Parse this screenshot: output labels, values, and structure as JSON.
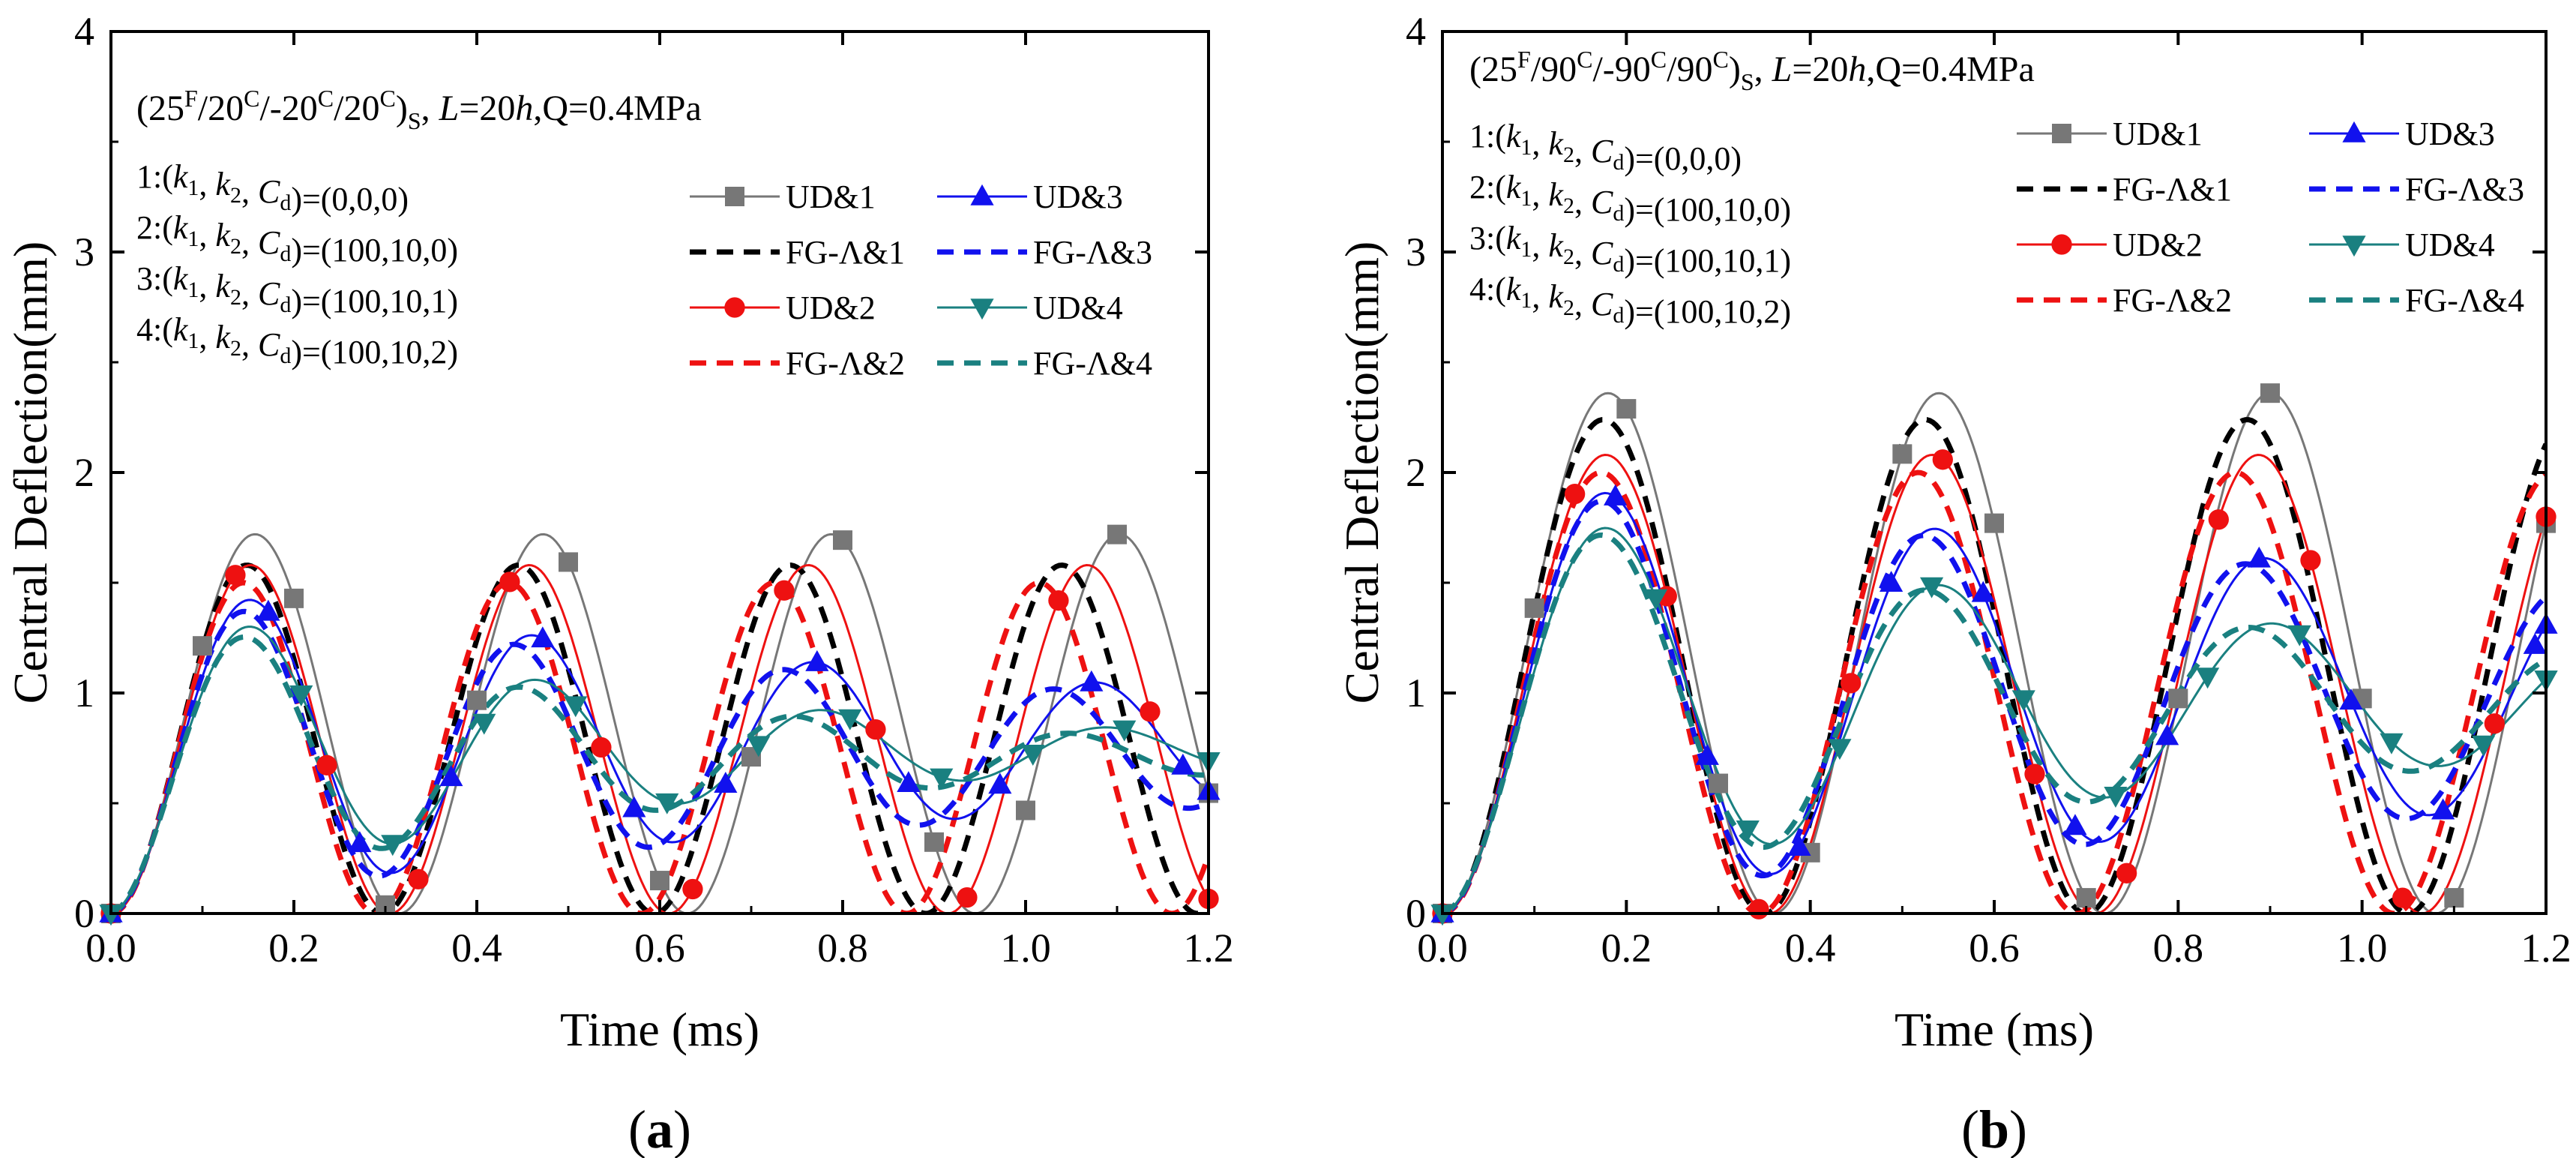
{
  "chart_data": [
    {
      "id": "a",
      "type": "line",
      "panel_label_open": "(",
      "panel_label_letter": "a",
      "panel_label_close": ")",
      "xlabel": "Time (ms)",
      "ylabel": "Central Deflection(mm)",
      "xlim": [
        0,
        1.2
      ],
      "ylim": [
        0,
        4
      ],
      "xticks": [
        "0.0",
        "0.2",
        "0.4",
        "0.6",
        "0.8",
        "1.0",
        "1.2"
      ],
      "yticks": [
        "0",
        "1",
        "2",
        "3",
        "4"
      ],
      "header": {
        "pre": "(25",
        "s1": "F",
        "m1": "/20",
        "s2": "C",
        "m2": "/-20",
        "s3": "C",
        "m3": "/20",
        "s4": "C",
        "m4": ")",
        "sub": "S",
        "m5": ", ",
        "it1": "L",
        "m6": "=20",
        "it2": "h",
        "m7": ",Q=0.4MPa"
      },
      "cases": [
        {
          "n": "1",
          "vals": "=(0,0,0)"
        },
        {
          "n": "2",
          "vals": "=(100,10,0)"
        },
        {
          "n": "3",
          "vals": "=(100,10,1)"
        },
        {
          "n": "4",
          "vals": "=(100,10,2)"
        }
      ],
      "legend": [
        "UD&1",
        "UD&3",
        "FG-Λ&1",
        "FG-Λ&3",
        "UD&2",
        "UD&4",
        "FG-Λ&2",
        "FG-Λ&4"
      ],
      "series": [
        {
          "name": "UD&1",
          "color": "#777777",
          "style": "solid",
          "marker": "square",
          "A": 0.86,
          "period": 0.315,
          "damp": 0.0
        },
        {
          "name": "FG-Λ&1",
          "color": "#000000",
          "style": "dashed",
          "marker": "none",
          "A": 0.79,
          "period": 0.297,
          "damp": 0.0
        },
        {
          "name": "UD&2",
          "color": "#ee1111",
          "style": "solid",
          "marker": "circle",
          "A": 0.79,
          "period": 0.305,
          "damp": 0.0
        },
        {
          "name": "FG-Λ&2",
          "color": "#ee1111",
          "style": "dashed",
          "marker": "none",
          "A": 0.75,
          "period": 0.29,
          "damp": 0.0
        },
        {
          "name": "UD&3",
          "color": "#1111ee",
          "style": "solid",
          "marker": "triangle-up",
          "A": 0.76,
          "period": 0.308,
          "damp": 0.9
        },
        {
          "name": "FG-Λ&3",
          "color": "#1111ee",
          "style": "dashed",
          "marker": "none",
          "A": 0.73,
          "period": 0.295,
          "damp": 0.9
        },
        {
          "name": "UD&4",
          "color": "#1a8080",
          "style": "solid",
          "marker": "triangle-down",
          "A": 0.74,
          "period": 0.312,
          "damp": 1.8
        },
        {
          "name": "FG-Λ&4",
          "color": "#1a8080",
          "style": "dashed",
          "marker": "none",
          "A": 0.71,
          "period": 0.3,
          "damp": 1.8
        }
      ]
    },
    {
      "id": "b",
      "type": "line",
      "panel_label_open": "(",
      "panel_label_letter": "b",
      "panel_label_close": ")",
      "xlabel": "Time (ms)",
      "ylabel": "Central Deflection(mm)",
      "xlim": [
        0,
        1.2
      ],
      "ylim": [
        0,
        4
      ],
      "xticks": [
        "0.0",
        "0.2",
        "0.4",
        "0.6",
        "0.8",
        "1.0",
        "1.2"
      ],
      "yticks": [
        "0",
        "1",
        "2",
        "3",
        "4"
      ],
      "header": {
        "pre": "(25",
        "s1": "F",
        "m1": "/90",
        "s2": "C",
        "m2": "/-90",
        "s3": "C",
        "m3": "/90",
        "s4": "C",
        "m4": ")",
        "sub": "S",
        "m5": ", ",
        "it1": "L",
        "m6": "=20",
        "it2": "h",
        "m7": ",Q=0.4MPa"
      },
      "cases": [
        {
          "n": "1",
          "vals": "=(0,0,0)"
        },
        {
          "n": "2",
          "vals": "=(100,10,0)"
        },
        {
          "n": "3",
          "vals": "=(100,10,1)"
        },
        {
          "n": "4",
          "vals": "=(100,10,2)"
        }
      ],
      "legend": [
        "UD&1",
        "UD&3",
        "FG-Λ&1",
        "FG-Λ&3",
        "UD&2",
        "UD&4",
        "FG-Λ&2",
        "FG-Λ&4"
      ],
      "series": [
        {
          "name": "UD&1",
          "color": "#777777",
          "style": "solid",
          "marker": "square",
          "A": 1.18,
          "period": 0.36,
          "damp": 0.0
        },
        {
          "name": "FG-Λ&1",
          "color": "#000000",
          "style": "dashed",
          "marker": "none",
          "A": 1.12,
          "period": 0.35,
          "damp": 0.0
        },
        {
          "name": "UD&2",
          "color": "#ee1111",
          "style": "solid",
          "marker": "circle",
          "A": 1.04,
          "period": 0.355,
          "damp": 0.0
        },
        {
          "name": "FG-Λ&2",
          "color": "#ee1111",
          "style": "dashed",
          "marker": "none",
          "A": 1.0,
          "period": 0.345,
          "damp": 0.0
        },
        {
          "name": "UD&3",
          "color": "#1111ee",
          "style": "solid",
          "marker": "triangle-up",
          "A": 1.0,
          "period": 0.358,
          "damp": 0.55
        },
        {
          "name": "FG-Λ&3",
          "color": "#1111ee",
          "style": "dashed",
          "marker": "none",
          "A": 0.98,
          "period": 0.35,
          "damp": 0.55
        },
        {
          "name": "UD&4",
          "color": "#1a8080",
          "style": "solid",
          "marker": "triangle-down",
          "A": 0.96,
          "period": 0.362,
          "damp": 1.1
        },
        {
          "name": "FG-Λ&4",
          "color": "#1a8080",
          "style": "dashed",
          "marker": "none",
          "A": 0.94,
          "period": 0.352,
          "damp": 1.1
        }
      ]
    }
  ]
}
